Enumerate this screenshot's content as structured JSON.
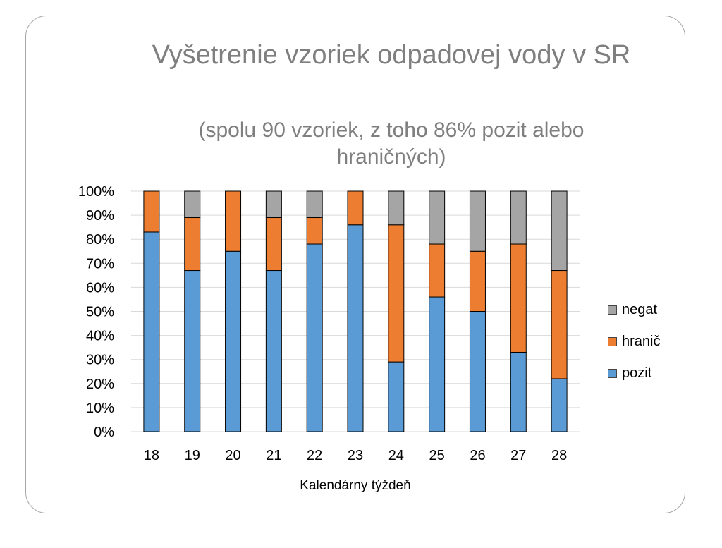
{
  "chart_data": {
    "type": "bar",
    "stacked": true,
    "title": "Vyšetrenie vzoriek odpadovej vody  v SR",
    "subtitle": "(spolu 90 vzoriek, z toho 86% pozit alebo hraničných)",
    "xlabel": "Kalendárny týždeň",
    "ylabel": "",
    "ylim": [
      0,
      100
    ],
    "y_ticks": [
      "0%",
      "10%",
      "20%",
      "30%",
      "40%",
      "50%",
      "60%",
      "70%",
      "80%",
      "90%",
      "100%"
    ],
    "categories": [
      "18",
      "19",
      "20",
      "21",
      "22",
      "23",
      "24",
      "25",
      "26",
      "27",
      "28"
    ],
    "series": [
      {
        "name": "pozit",
        "color": "#5b9bd5",
        "values": [
          83,
          67,
          75,
          67,
          78,
          86,
          29,
          56,
          50,
          33,
          22
        ]
      },
      {
        "name": "hranič",
        "color": "#ed7d31",
        "values": [
          17,
          22,
          25,
          22,
          11,
          14,
          57,
          22,
          25,
          45,
          45
        ]
      },
      {
        "name": "negat",
        "color": "#a5a5a5",
        "values": [
          0,
          11,
          0,
          11,
          11,
          0,
          14,
          22,
          25,
          22,
          33
        ]
      }
    ],
    "grid": true,
    "legend_position": "right"
  }
}
